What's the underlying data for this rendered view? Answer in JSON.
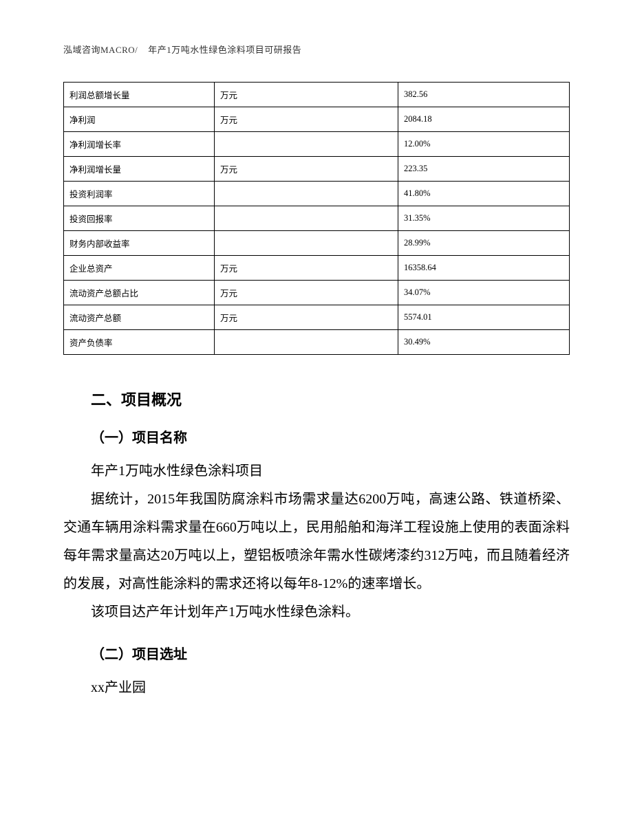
{
  "header": {
    "left": "泓域咨询MACRO/",
    "right": "年产1万吨水性绿色涂料项目可研报告"
  },
  "table": {
    "rows": [
      {
        "label": "利润总额增长量",
        "unit": "万元",
        "value": "382.56"
      },
      {
        "label": "净利润",
        "unit": "万元",
        "value": "2084.18"
      },
      {
        "label": "净利润增长率",
        "unit": "",
        "value": "12.00%"
      },
      {
        "label": "净利润增长量",
        "unit": "万元",
        "value": "223.35"
      },
      {
        "label": "投资利润率",
        "unit": "",
        "value": "41.80%"
      },
      {
        "label": "投资回报率",
        "unit": "",
        "value": "31.35%"
      },
      {
        "label": "财务内部收益率",
        "unit": "",
        "value": "28.99%"
      },
      {
        "label": "企业总资产",
        "unit": "万元",
        "value": "16358.64"
      },
      {
        "label": "流动资产总额占比",
        "unit": "万元",
        "value": "34.07%"
      },
      {
        "label": "流动资产总额",
        "unit": "万元",
        "value": "5574.01"
      },
      {
        "label": "资产负债率",
        "unit": "",
        "value": "30.49%"
      }
    ]
  },
  "sections": {
    "overview_heading": "二、项目概况",
    "name_heading": "（一）项目名称",
    "name_line": "年产1万吨水性绿色涂料项目",
    "stats_para": "据统计，2015年我国防腐涂料市场需求量达6200万吨，高速公路、铁道桥梁、交通车辆用涂料需求量在660万吨以上，民用船舶和海洋工程设施上使用的表面涂料每年需求量高达20万吨以上，塑铝板喷涂年需水性碳烤漆约312万吨，而且随着经济的发展，对高性能涂料的需求还将以每年8-12%的速率增长。",
    "capacity_line": "该项目达产年计划年产1万吨水性绿色涂料。",
    "site_heading": "（二）项目选址",
    "site_line": "xx产业园"
  }
}
